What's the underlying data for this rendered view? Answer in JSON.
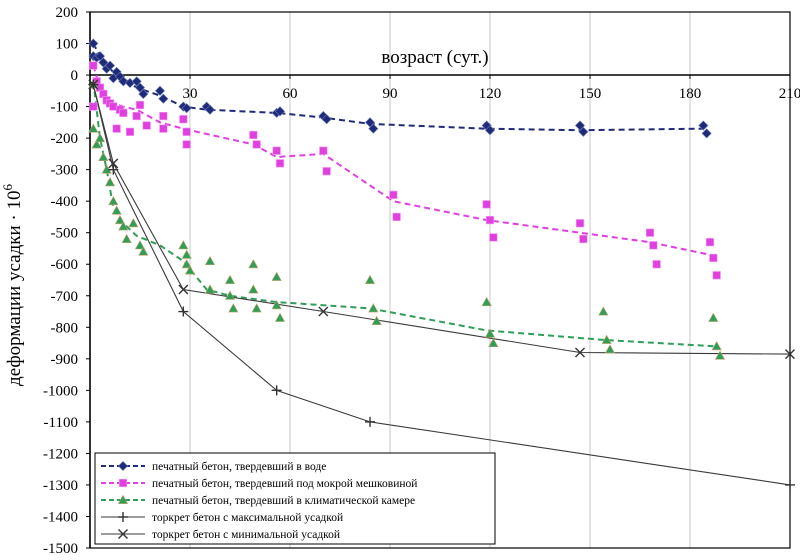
{
  "chart_data": {
    "type": "scatter",
    "xlabel": "возраст (сут.)",
    "ylabel": "деформации усадки · 10",
    "ylabel_exponent": "6",
    "xlim": [
      0,
      210
    ],
    "ylim": [
      -1500,
      200
    ],
    "x_ticks": [
      30,
      60,
      90,
      120,
      150,
      180,
      210
    ],
    "y_ticks": [
      200,
      100,
      0,
      -100,
      -200,
      -300,
      -400,
      -500,
      -600,
      -700,
      -800,
      -900,
      -1000,
      -1100,
      -1200,
      -1300,
      -1400,
      -1500
    ],
    "grid": "vertical",
    "legend_placement": "bottom-left",
    "series": [
      {
        "name": "печатный бетон, твердевший в воде",
        "color": "#1f2a78",
        "line": "dashed",
        "marker": "diamond",
        "line_points": [
          [
            1,
            100
          ],
          [
            3,
            60
          ],
          [
            5,
            30
          ],
          [
            7,
            10
          ],
          [
            10,
            -10
          ],
          [
            14,
            -40
          ],
          [
            21,
            -65
          ],
          [
            28,
            -100
          ],
          [
            35,
            -110
          ],
          [
            56,
            -120
          ],
          [
            70,
            -135
          ],
          [
            84,
            -155
          ],
          [
            119,
            -170
          ],
          [
            147,
            -175
          ],
          [
            184,
            -170
          ]
        ],
        "points": [
          [
            1,
            100
          ],
          [
            1,
            60
          ],
          [
            2,
            55
          ],
          [
            3,
            60
          ],
          [
            4,
            40
          ],
          [
            5,
            20
          ],
          [
            6,
            30
          ],
          [
            7,
            -10
          ],
          [
            8,
            10
          ],
          [
            9,
            -5
          ],
          [
            10,
            -20
          ],
          [
            12,
            -25
          ],
          [
            14,
            -20
          ],
          [
            15,
            -40
          ],
          [
            16,
            -60
          ],
          [
            21,
            -50
          ],
          [
            22,
            -75
          ],
          [
            28,
            -100
          ],
          [
            29,
            -105
          ],
          [
            35,
            -100
          ],
          [
            36,
            -110
          ],
          [
            56,
            -120
          ],
          [
            57,
            -115
          ],
          [
            70,
            -130
          ],
          [
            71,
            -140
          ],
          [
            84,
            -150
          ],
          [
            85,
            -170
          ],
          [
            119,
            -160
          ],
          [
            120,
            -175
          ],
          [
            147,
            -160
          ],
          [
            148,
            -180
          ],
          [
            184,
            -160
          ],
          [
            185,
            -185
          ]
        ]
      },
      {
        "name": "печатный бетон, твердевший под мокрой мешковиной",
        "color": "#e040e0",
        "line": "dashed",
        "marker": "square",
        "line_points": [
          [
            1,
            30
          ],
          [
            3,
            -40
          ],
          [
            5,
            -75
          ],
          [
            7,
            -90
          ],
          [
            10,
            -100
          ],
          [
            14,
            -110
          ],
          [
            21,
            -150
          ],
          [
            28,
            -170
          ],
          [
            49,
            -220
          ],
          [
            56,
            -260
          ],
          [
            70,
            -250
          ],
          [
            91,
            -400
          ],
          [
            119,
            -460
          ],
          [
            147,
            -500
          ],
          [
            168,
            -530
          ],
          [
            186,
            -570
          ]
        ],
        "points": [
          [
            1,
            30
          ],
          [
            1,
            -100
          ],
          [
            2,
            -20
          ],
          [
            3,
            -40
          ],
          [
            4,
            -60
          ],
          [
            5,
            -80
          ],
          [
            6,
            -90
          ],
          [
            7,
            -100
          ],
          [
            8,
            -170
          ],
          [
            9,
            -110
          ],
          [
            10,
            -120
          ],
          [
            12,
            -180
          ],
          [
            14,
            -130
          ],
          [
            15,
            -95
          ],
          [
            17,
            -160
          ],
          [
            22,
            -130
          ],
          [
            22,
            -170
          ],
          [
            28,
            -140
          ],
          [
            29,
            -180
          ],
          [
            29,
            -220
          ],
          [
            49,
            -190
          ],
          [
            50,
            -220
          ],
          [
            56,
            -240
          ],
          [
            57,
            -280
          ],
          [
            70,
            -240
          ],
          [
            71,
            -305
          ],
          [
            91,
            -380
          ],
          [
            92,
            -450
          ],
          [
            119,
            -410
          ],
          [
            120,
            -460
          ],
          [
            121,
            -515
          ],
          [
            147,
            -470
          ],
          [
            148,
            -520
          ],
          [
            168,
            -500
          ],
          [
            169,
            -540
          ],
          [
            170,
            -600
          ],
          [
            186,
            -530
          ],
          [
            187,
            -580
          ],
          [
            188,
            -635
          ]
        ]
      },
      {
        "name": "печатный бетон, твердевший в климатической камере",
        "color": "#2e9e58",
        "line": "dashed",
        "marker": "triangle",
        "line_points": [
          [
            1,
            -20
          ],
          [
            3,
            -200
          ],
          [
            5,
            -300
          ],
          [
            7,
            -420
          ],
          [
            10,
            -470
          ],
          [
            14,
            -510
          ],
          [
            21,
            -540
          ],
          [
            28,
            -590
          ],
          [
            35,
            -680
          ],
          [
            42,
            -700
          ],
          [
            56,
            -720
          ],
          [
            70,
            -730
          ],
          [
            84,
            -740
          ],
          [
            119,
            -810
          ],
          [
            154,
            -840
          ],
          [
            187,
            -860
          ]
        ],
        "points": [
          [
            1,
            -30
          ],
          [
            1,
            -170
          ],
          [
            2,
            -220
          ],
          [
            3,
            -200
          ],
          [
            4,
            -260
          ],
          [
            5,
            -300
          ],
          [
            6,
            -340
          ],
          [
            7,
            -400
          ],
          [
            8,
            -430
          ],
          [
            9,
            -460
          ],
          [
            10,
            -480
          ],
          [
            11,
            -520
          ],
          [
            13,
            -470
          ],
          [
            15,
            -540
          ],
          [
            16,
            -560
          ],
          [
            28,
            -540
          ],
          [
            29,
            -570
          ],
          [
            29,
            -600
          ],
          [
            30,
            -620
          ],
          [
            36,
            -590
          ],
          [
            36,
            -680
          ],
          [
            42,
            -650
          ],
          [
            42,
            -700
          ],
          [
            43,
            -740
          ],
          [
            49,
            -600
          ],
          [
            49,
            -680
          ],
          [
            50,
            -740
          ],
          [
            56,
            -640
          ],
          [
            56,
            -730
          ],
          [
            57,
            -770
          ],
          [
            84,
            -650
          ],
          [
            85,
            -740
          ],
          [
            86,
            -780
          ],
          [
            119,
            -720
          ],
          [
            120,
            -820
          ],
          [
            121,
            -850
          ],
          [
            154,
            -750
          ],
          [
            155,
            -840
          ],
          [
            156,
            -870
          ],
          [
            187,
            -770
          ],
          [
            188,
            -860
          ],
          [
            189,
            -890
          ]
        ]
      },
      {
        "name": "торкрет бетон с максимальной усадкой",
        "color": "#333333",
        "line": "solid",
        "marker": "plus",
        "line_points": [
          [
            1,
            -30
          ],
          [
            7,
            -300
          ],
          [
            28,
            -750
          ],
          [
            56,
            -1000
          ],
          [
            84,
            -1100
          ],
          [
            210,
            -1300
          ]
        ],
        "points": [
          [
            1,
            -30
          ],
          [
            7,
            -300
          ],
          [
            28,
            -750
          ],
          [
            56,
            -1000
          ],
          [
            84,
            -1100
          ],
          [
            210,
            -1300
          ]
        ]
      },
      {
        "name": "торкрет бетон с минимальной усадкой",
        "color": "#333333",
        "line": "solid",
        "marker": "x",
        "line_points": [
          [
            1,
            -30
          ],
          [
            7,
            -280
          ],
          [
            28,
            -680
          ],
          [
            70,
            -750
          ],
          [
            147,
            -880
          ],
          [
            210,
            -885
          ]
        ],
        "points": [
          [
            1,
            -30
          ],
          [
            7,
            -280
          ],
          [
            28,
            -680
          ],
          [
            70,
            -750
          ],
          [
            147,
            -880
          ],
          [
            210,
            -885
          ]
        ]
      }
    ]
  }
}
